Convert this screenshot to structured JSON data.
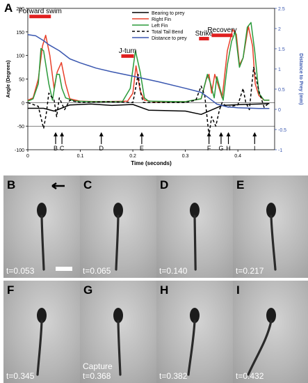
{
  "panel_a_label": "A",
  "chart_data": {
    "type": "line",
    "xlabel": "Time (seconds)",
    "ylabel_left": "Angle (Degrees)",
    "ylabel_right": "Distance to Prey (mm)",
    "xlim": [
      0,
      0.47
    ],
    "ylim_left": [
      -100,
      200
    ],
    "ylim_right": [
      -1,
      2.5
    ],
    "x_ticks": [
      0,
      0.1,
      0.2,
      0.3,
      0.4
    ],
    "x_tick_labels": [
      "0",
      "0.1",
      "0.2",
      "0.3",
      "0.4"
    ],
    "y_left_ticks": [
      -100,
      -50,
      0,
      50,
      100,
      150,
      200
    ],
    "y_right_ticks": [
      -1,
      -0.5,
      0,
      0.5,
      1,
      1.5,
      2,
      2.5
    ],
    "y_right_tick_labels": [
      "-1",
      "-0.5",
      "0",
      "0.5",
      "1",
      "1.5",
      "2",
      "2.5"
    ],
    "grid": false,
    "legend_position": "top-center",
    "series": [
      {
        "name": "Bearing to prey",
        "color": "#000000",
        "style": "solid",
        "axis": "left",
        "x": [
          0,
          0.03,
          0.05,
          0.08,
          0.12,
          0.16,
          0.2,
          0.23,
          0.26,
          0.3,
          0.33,
          0.37,
          0.41,
          0.44,
          0.46
        ],
        "y": [
          -12,
          -12,
          -18,
          -5,
          -3,
          -6,
          -4,
          -16,
          -17,
          -18,
          -25,
          -6,
          -4,
          -3,
          -2
        ]
      },
      {
        "name": "Right Fin",
        "color": "#e8402a",
        "style": "solid",
        "axis": "left",
        "x": [
          0,
          0.01,
          0.02,
          0.028,
          0.034,
          0.042,
          0.05,
          0.056,
          0.064,
          0.072,
          0.08,
          0.1,
          0.14,
          0.19,
          0.2,
          0.206,
          0.214,
          0.222,
          0.24,
          0.3,
          0.33,
          0.34,
          0.345,
          0.35,
          0.356,
          0.363,
          0.37,
          0.38,
          0.39,
          0.397,
          0.403,
          0.41,
          0.42,
          0.428,
          0.433,
          0.44,
          0.45,
          0.46
        ],
        "y": [
          5,
          10,
          50,
          120,
          143,
          100,
          30,
          65,
          85,
          40,
          8,
          3,
          2,
          3,
          20,
          78,
          25,
          5,
          2,
          2,
          8,
          50,
          60,
          20,
          60,
          35,
          10,
          110,
          155,
          145,
          80,
          95,
          162,
          120,
          40,
          15,
          5,
          5
        ]
      },
      {
        "name": "Left Fin",
        "color": "#2a9a3a",
        "style": "solid",
        "axis": "left",
        "x": [
          0,
          0.01,
          0.02,
          0.025,
          0.03,
          0.04,
          0.047,
          0.055,
          0.06,
          0.065,
          0.072,
          0.09,
          0.12,
          0.18,
          0.195,
          0.205,
          0.214,
          0.222,
          0.23,
          0.3,
          0.33,
          0.342,
          0.348,
          0.355,
          0.36,
          0.366,
          0.372,
          0.38,
          0.388,
          0.395,
          0.403,
          0.41,
          0.418,
          0.425,
          0.432,
          0.44,
          0.45,
          0.46
        ],
        "y": [
          3,
          8,
          40,
          115,
          110,
          40,
          5,
          60,
          60,
          30,
          10,
          3,
          2,
          2,
          30,
          110,
          65,
          10,
          3,
          2,
          8,
          60,
          40,
          10,
          55,
          30,
          5,
          80,
          130,
          150,
          75,
          95,
          160,
          170,
          110,
          20,
          5,
          5
        ]
      },
      {
        "name": "Total Tail Bend",
        "color": "#000000",
        "style": "dashed",
        "axis": "left",
        "x": [
          0,
          0.02,
          0.03,
          0.035,
          0.04,
          0.05,
          0.055,
          0.06,
          0.07,
          0.08,
          0.1,
          0.15,
          0.2,
          0.205,
          0.21,
          0.215,
          0.22,
          0.25,
          0.3,
          0.32,
          0.33,
          0.337,
          0.345,
          0.35,
          0.358,
          0.365,
          0.37,
          0.38,
          0.4,
          0.41,
          0.415,
          0.422,
          0.43,
          0.44,
          0.45,
          0.46
        ],
        "y": [
          0,
          -8,
          -55,
          -25,
          20,
          5,
          -30,
          10,
          -15,
          5,
          0,
          2,
          0,
          28,
          60,
          20,
          0,
          0,
          0,
          5,
          35,
          15,
          -70,
          -30,
          -50,
          -15,
          0,
          -10,
          -5,
          30,
          0,
          -15,
          75,
          25,
          -10,
          0
        ]
      },
      {
        "name": "Distance to prey",
        "color": "#3a57b0",
        "style": "solid",
        "axis": "right",
        "x": [
          0,
          0.015,
          0.03,
          0.04,
          0.06,
          0.08,
          0.1,
          0.13,
          0.16,
          0.2,
          0.25,
          0.3,
          0.33,
          0.345,
          0.36,
          0.38,
          0.4,
          0.42,
          0.44,
          0.46
        ],
        "y": [
          1.85,
          1.82,
          1.7,
          1.6,
          1.45,
          1.25,
          1.15,
          1.02,
          0.93,
          0.82,
          0.68,
          0.52,
          0.42,
          0.28,
          0.13,
          0.06,
          0.04,
          0.03,
          0.02,
          0.02
        ]
      }
    ],
    "annotations": [
      {
        "text": "Forward swim",
        "bar_from": 0.003,
        "bar_to": 0.044,
        "level": 182
      },
      {
        "text": "J-turn",
        "bar_from": 0.178,
        "bar_to": 0.202,
        "level": 98
      },
      {
        "text": "Strike",
        "bar_from": 0.326,
        "bar_to": 0.345,
        "level": 135
      },
      {
        "text": "Recovery",
        "bar_from": 0.35,
        "bar_to": 0.39,
        "level": 142
      }
    ],
    "event_markers": [
      {
        "label": "B",
        "x": 0.053
      },
      {
        "label": "C",
        "x": 0.065
      },
      {
        "label": "D",
        "x": 0.14
      },
      {
        "label": "E",
        "x": 0.217
      },
      {
        "label": "F",
        "x": 0.345
      },
      {
        "label": "G",
        "x": 0.368
      },
      {
        "label": "H",
        "x": 0.382
      },
      {
        "label": "I",
        "x": 0.432
      }
    ]
  },
  "photos": [
    {
      "label": "B",
      "time": "t=0.053",
      "caption": "",
      "has_scale_bar": true,
      "has_arrow": true,
      "curve": 0.05
    },
    {
      "label": "C",
      "time": "t=0.065",
      "caption": "",
      "has_scale_bar": false,
      "has_arrow": false,
      "curve": -0.05
    },
    {
      "label": "D",
      "time": "t=0.140",
      "caption": "",
      "has_scale_bar": false,
      "has_arrow": false,
      "curve": 0.02
    },
    {
      "label": "E",
      "time": "t=0.217",
      "caption": "",
      "has_scale_bar": false,
      "has_arrow": false,
      "curve": 0.1
    },
    {
      "label": "F",
      "time": "t=0.345",
      "caption": "",
      "has_scale_bar": false,
      "has_arrow": false,
      "curve": -0.1
    },
    {
      "label": "G",
      "time": "t=0.368",
      "caption": "Capture",
      "has_scale_bar": false,
      "has_arrow": false,
      "curve": 0.05
    },
    {
      "label": "H",
      "time": "t=0.382",
      "caption": "",
      "has_scale_bar": false,
      "has_arrow": false,
      "curve": -0.15
    },
    {
      "label": "I",
      "time": "t=0.432",
      "caption": "",
      "has_scale_bar": false,
      "has_arrow": false,
      "curve": -0.55
    }
  ]
}
